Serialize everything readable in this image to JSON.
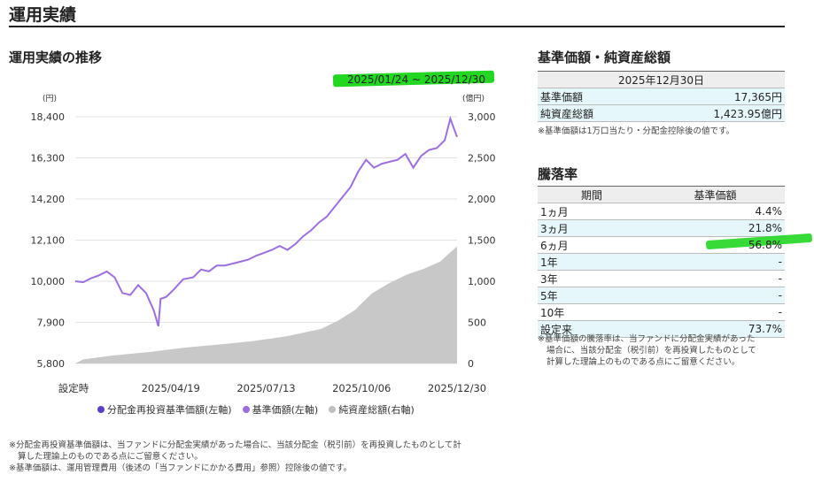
{
  "page": {
    "title": "運用実績"
  },
  "performance": {
    "title": "運用実績の推移",
    "date_range": "2025/01/24 ~ 2025/12/30",
    "left_unit": "(円)",
    "right_unit": "(億円)",
    "legend": [
      {
        "label": "分配金再投資基準価額(左軸)",
        "color": "#5a3fc8"
      },
      {
        "label": "基準価額(左軸)",
        "color": "#9c6fe0"
      },
      {
        "label": "純資産総額(右軸)",
        "color": "#bfbfbf"
      }
    ]
  },
  "chart_data": {
    "type": "line",
    "x_ticks": [
      "設定時",
      "2025/04/19",
      "2025/07/13",
      "2025/10/06",
      "2025/12/30"
    ],
    "left_ticks": [
      "18,400",
      "16,300",
      "14,200",
      "12,100",
      "10,000",
      "7,900",
      "5,800"
    ],
    "right_ticks": [
      "3,000",
      "2,500",
      "2,000",
      "1,500",
      "1,000",
      "500",
      "0"
    ],
    "left_ylim": [
      5800,
      18400
    ],
    "right_ylim": [
      0,
      3000
    ],
    "series": [
      {
        "name": "基準価額(左軸)",
        "axis": "left",
        "points": [
          [
            "2025-01-24",
            10000
          ],
          [
            "2025-01-31",
            9950
          ],
          [
            "2025-02-07",
            10150
          ],
          [
            "2025-02-14",
            10300
          ],
          [
            "2025-02-21",
            10500
          ],
          [
            "2025-02-28",
            10200
          ],
          [
            "2025-03-07",
            9400
          ],
          [
            "2025-03-14",
            9300
          ],
          [
            "2025-03-21",
            9800
          ],
          [
            "2025-03-28",
            9400
          ],
          [
            "2025-04-04",
            8500
          ],
          [
            "2025-04-08",
            7700
          ],
          [
            "2025-04-10",
            9100
          ],
          [
            "2025-04-15",
            9200
          ],
          [
            "2025-04-22",
            9600
          ],
          [
            "2025-04-30",
            10100
          ],
          [
            "2025-05-09",
            10200
          ],
          [
            "2025-05-16",
            10600
          ],
          [
            "2025-05-23",
            10500
          ],
          [
            "2025-05-30",
            10800
          ],
          [
            "2025-06-06",
            10800
          ],
          [
            "2025-06-13",
            10900
          ],
          [
            "2025-06-20",
            11000
          ],
          [
            "2025-06-27",
            11100
          ],
          [
            "2025-07-04",
            11300
          ],
          [
            "2025-07-11",
            11450
          ],
          [
            "2025-07-18",
            11600
          ],
          [
            "2025-07-25",
            11800
          ],
          [
            "2025-08-01",
            11600
          ],
          [
            "2025-08-08",
            11900
          ],
          [
            "2025-08-15",
            12300
          ],
          [
            "2025-08-22",
            12600
          ],
          [
            "2025-08-29",
            13000
          ],
          [
            "2025-09-05",
            13300
          ],
          [
            "2025-09-12",
            13800
          ],
          [
            "2025-09-19",
            14300
          ],
          [
            "2025-09-26",
            14800
          ],
          [
            "2025-10-03",
            15600
          ],
          [
            "2025-10-10",
            16200
          ],
          [
            "2025-10-17",
            15800
          ],
          [
            "2025-10-24",
            16000
          ],
          [
            "2025-10-31",
            16100
          ],
          [
            "2025-11-07",
            16200
          ],
          [
            "2025-11-14",
            16500
          ],
          [
            "2025-11-21",
            15800
          ],
          [
            "2025-11-28",
            16400
          ],
          [
            "2025-12-05",
            16700
          ],
          [
            "2025-12-12",
            16800
          ],
          [
            "2025-12-19",
            17200
          ],
          [
            "2025-12-24",
            18300
          ],
          [
            "2025-12-30",
            17365
          ]
        ]
      },
      {
        "name": "純資産総額(右軸)",
        "axis": "right",
        "points": [
          [
            "2025-01-24",
            0
          ],
          [
            "2025-01-31",
            50
          ],
          [
            "2025-02-28",
            100
          ],
          [
            "2025-03-31",
            140
          ],
          [
            "2025-04-30",
            190
          ],
          [
            "2025-05-31",
            230
          ],
          [
            "2025-06-30",
            270
          ],
          [
            "2025-07-31",
            330
          ],
          [
            "2025-08-31",
            420
          ],
          [
            "2025-09-15",
            520
          ],
          [
            "2025-09-30",
            650
          ],
          [
            "2025-10-15",
            850
          ],
          [
            "2025-10-31",
            980
          ],
          [
            "2025-11-15",
            1080
          ],
          [
            "2025-11-30",
            1150
          ],
          [
            "2025-12-15",
            1240
          ],
          [
            "2025-12-30",
            1424
          ]
        ]
      }
    ]
  },
  "nav": {
    "title": "基準価額・純資産総額",
    "date": "2025年12月30日",
    "rows": [
      {
        "label": "基準価額",
        "value": "17,365円"
      },
      {
        "label": "純資産総額",
        "value": "1,423.95億円"
      }
    ],
    "note": "※基準価額は1万口当たり・分配金控除後の値です。"
  },
  "returns": {
    "title": "騰落率",
    "col_period": "期間",
    "col_value": "基準価額",
    "rows": [
      {
        "period": "1ヵ月",
        "value": "4.4%"
      },
      {
        "period": "3ヵ月",
        "value": "21.8%"
      },
      {
        "period": "6ヵ月",
        "value": "56.8%"
      },
      {
        "period": "1年",
        "value": "-"
      },
      {
        "period": "3年",
        "value": "-"
      },
      {
        "period": "5年",
        "value": "-"
      },
      {
        "period": "10年",
        "value": "-"
      },
      {
        "period": "設定来",
        "value": "73.7%"
      }
    ],
    "note_1": "※基準価額の騰落率は、当ファンドに分配金実績があった",
    "note_2": "場合に、当該分配金（税引前）を再投資したものとして",
    "note_3": "計算した理論上のものである点にご留意ください。"
  },
  "notes": {
    "line_1": "※分配金再投資基準価額は、当ファンドに分配金実績があった場合に、当該分配金（税引前）を再投資したものとして計",
    "line_2": "算した理論上のものである点にご留意ください。",
    "line_3": "※基準価額は、運用管理費用（後述の「当ファンドにかかる費用」参照）控除後の値です。"
  }
}
